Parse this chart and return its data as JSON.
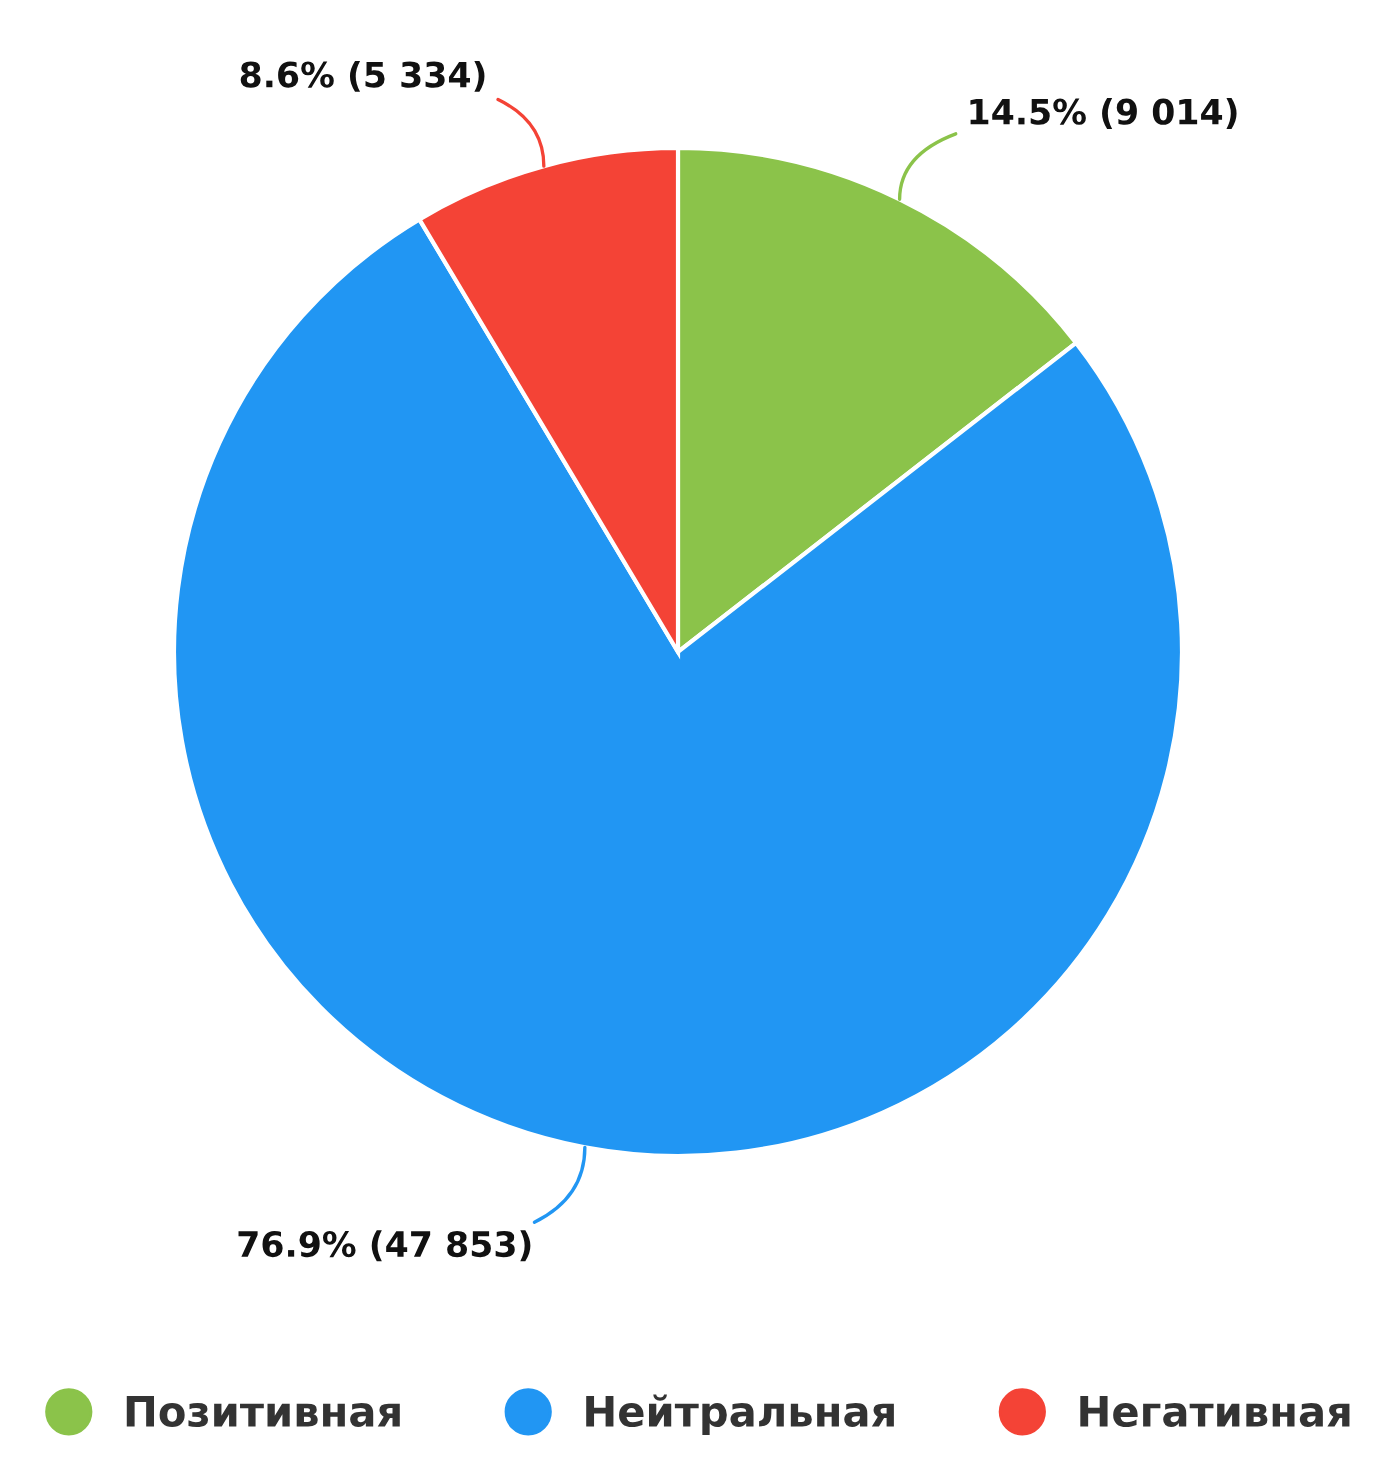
{
  "chart_data": {
    "type": "pie",
    "categories": [
      "Позитивная",
      "Нейтральная",
      "Негативная"
    ],
    "values": [
      9014,
      47853,
      5334
    ],
    "value_labels": [
      "14.5% (9 014)",
      "76.9% (47 853)",
      "8.6% (5 334)"
    ],
    "colors": [
      "#8bc34a",
      "#2196f3",
      "#f44336"
    ],
    "legend": "bottom"
  }
}
